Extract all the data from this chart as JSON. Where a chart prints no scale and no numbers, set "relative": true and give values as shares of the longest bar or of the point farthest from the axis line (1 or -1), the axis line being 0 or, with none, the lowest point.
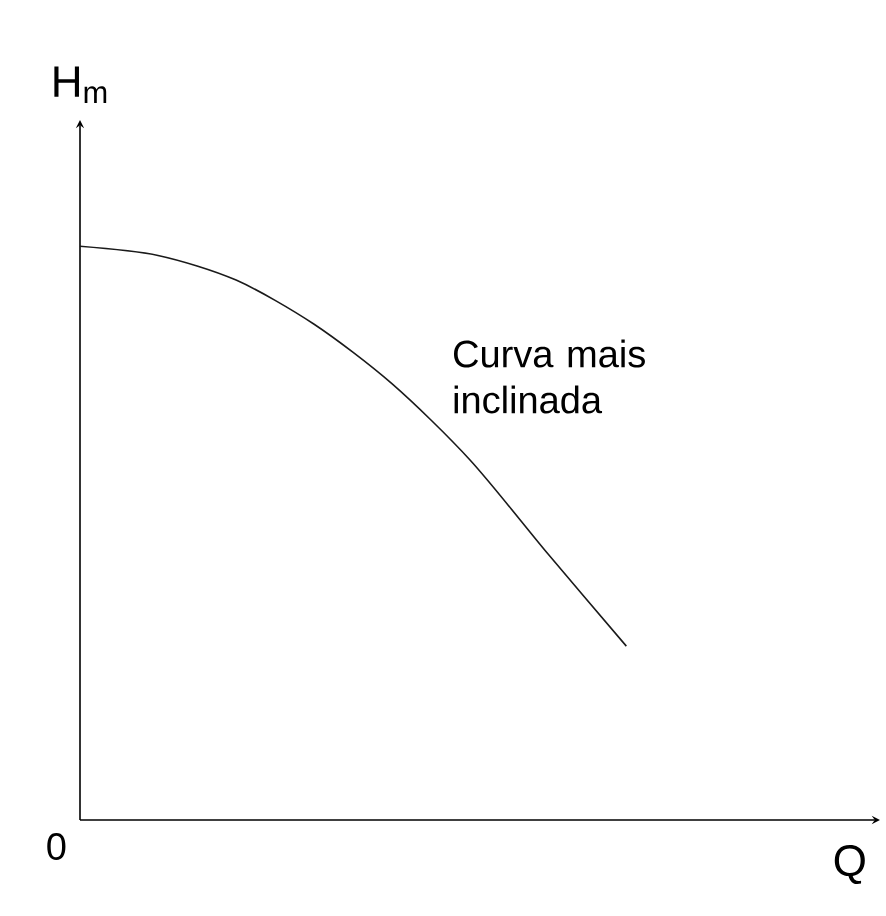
{
  "chart_data": {
    "type": "line",
    "relative": true,
    "xlabel": "Q",
    "ylabel": "H$_{m}$",
    "categories": [
      null,
      null,
      null,
      null,
      null,
      null,
      null,
      null,
      null,
      null,
      null
    ],
    "values": [
      1,
      0.984,
      0.941,
      0.864,
      0.76,
      0.627,
      0.463,
      0.303,
      null,
      null,
      null
    ],
    "color": "#1a1a1a",
    "annotations": [
      "Curva mais inclinada",
      "0"
    ]
  }
}
